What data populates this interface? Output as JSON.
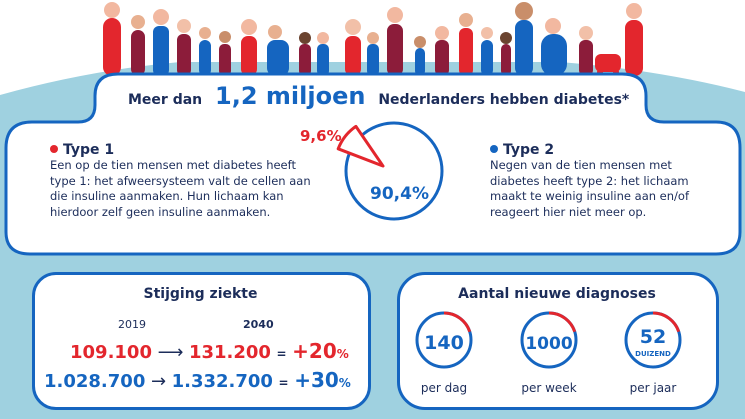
{
  "colors": {
    "red": "#e3262d",
    "blue": "#1565c0",
    "navy": "#1c2d5a",
    "panel": "#9fd1e0",
    "maroon": "#8c1c3a"
  },
  "headline": {
    "prefix": "Meer dan",
    "highlight": "1,2 miljoen",
    "suffix": "Nederlanders hebben diabetes*"
  },
  "type1": {
    "title": "Type 1",
    "text": "Een op de tien mensen met diabetes heeft type 1: het afweersysteem valt de cellen aan die insuline aanmaken. Hun lichaam kan hierdoor zelf geen insuline aanmaken."
  },
  "type2": {
    "title": "Type 2",
    "text": "Negen van de tien mensen met diabetes heeft type 2: het lichaam maakt te weinig insuline aan en/of reageert hier niet meer op."
  },
  "pie": {
    "type1_pct": 9.6,
    "type2_pct": 90.4,
    "type1_label": "9,6%",
    "type2_label": "90,4%"
  },
  "stijging": {
    "title": "Stijging ziekte",
    "year_from": "2019",
    "year_to": "2040",
    "rows": [
      {
        "from": "109.100",
        "to": "131.200",
        "eq": "=",
        "inc": "+20",
        "pct": "%"
      },
      {
        "from": "1.028.700",
        "to": "1.332.700",
        "eq": "=",
        "inc": "+30",
        "pct": "%"
      }
    ]
  },
  "diagnoses": {
    "title": "Aantal nieuwe diagnoses",
    "items": [
      {
        "value": "140",
        "sub": "",
        "label": "per dag",
        "fill": 0.8
      },
      {
        "value": "1000",
        "sub": "",
        "label": "per week",
        "fill": 0.8
      },
      {
        "value": "52",
        "sub": "DUIZEND",
        "label": "per jaar",
        "fill": 0.8
      }
    ]
  }
}
